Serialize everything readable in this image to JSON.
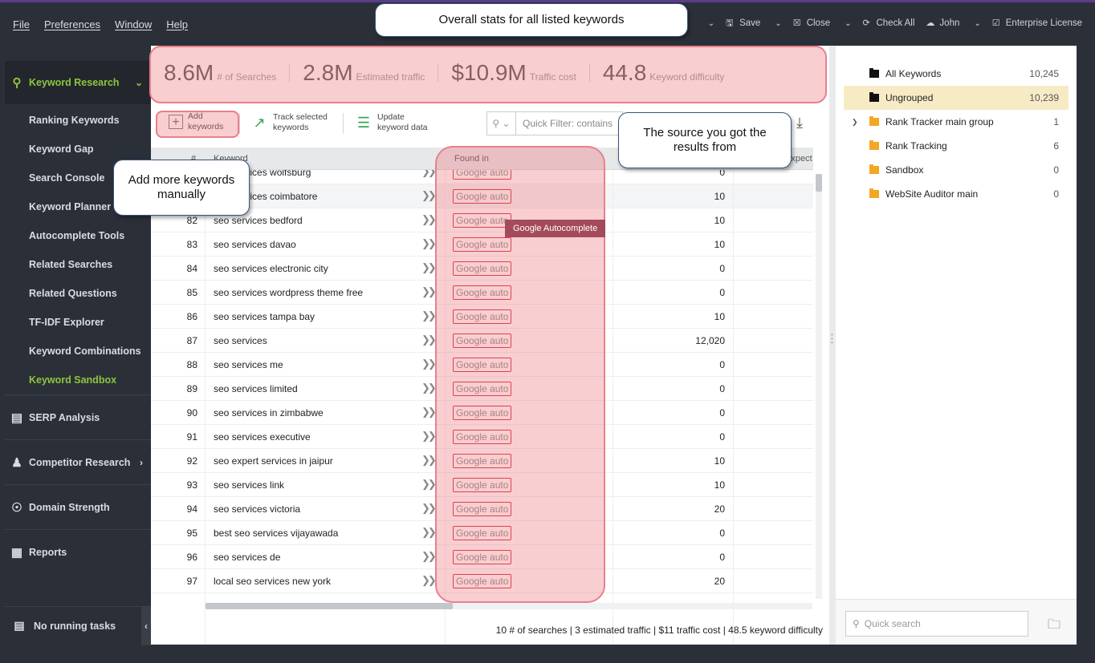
{
  "menu": [
    "File",
    "Preferences",
    "Window",
    "Help"
  ],
  "menu_right": {
    "save": "Save",
    "close": "Close",
    "check_all": "Check All",
    "user": "John",
    "license": "Enterprise License"
  },
  "sidebar": {
    "keyword_research": "Keyword Research",
    "items": [
      {
        "label": "Ranking Keywords"
      },
      {
        "label": "Keyword Gap"
      },
      {
        "label": "Search Console"
      },
      {
        "label": "Keyword Planner"
      },
      {
        "label": "Autocomplete Tools"
      },
      {
        "label": "Related Searches"
      },
      {
        "label": "Related Questions"
      },
      {
        "label": "TF-IDF Explorer"
      },
      {
        "label": "Keyword Combinations"
      },
      {
        "label": "Keyword Sandbox"
      }
    ],
    "serp": "SERP Analysis",
    "competitor": "Competitor Research",
    "domain": "Domain Strength",
    "reports": "Reports",
    "footer": "No running tasks"
  },
  "stats": [
    {
      "value": "8.6M",
      "label": "# of Searches"
    },
    {
      "value": "2.8M",
      "label": "Estimated traffic"
    },
    {
      "value": "$10.9M",
      "label": "Traffic cost"
    },
    {
      "value": "44.8",
      "label": "Keyword difficulty"
    }
  ],
  "toolbar": {
    "add_line1": "Add",
    "add_line2": "keywords",
    "track_line1": "Track selected",
    "track_line2": "keywords",
    "update_line1": "Update",
    "update_line2": "keyword data",
    "filter_placeholder": "Quick Filter: contains"
  },
  "table": {
    "col_num": "#",
    "col_keyword": "Keyword",
    "col_found": "Found in",
    "col_expect": "Expect",
    "rows": [
      {
        "num": "",
        "kw": "seo services wolfsburg",
        "found": "Google auto",
        "searches": "0"
      },
      {
        "num": "",
        "kw": "seo services coimbatore",
        "found": "Google auto",
        "searches": "10"
      },
      {
        "num": "82",
        "kw": "seo services bedford",
        "found": "Google auto",
        "searches": "10"
      },
      {
        "num": "83",
        "kw": "seo services davao",
        "found": "Google auto",
        "searches": "10"
      },
      {
        "num": "84",
        "kw": "seo services electronic city",
        "found": "Google auto",
        "searches": "0"
      },
      {
        "num": "85",
        "kw": "seo services wordpress theme free",
        "found": "Google auto",
        "searches": "0"
      },
      {
        "num": "86",
        "kw": "seo services tampa bay",
        "found": "Google auto",
        "searches": "10"
      },
      {
        "num": "87",
        "kw": "seo services",
        "found": "Google auto",
        "searches": "12,020"
      },
      {
        "num": "88",
        "kw": "seo services me",
        "found": "Google auto",
        "searches": "0"
      },
      {
        "num": "89",
        "kw": "seo services limited",
        "found": "Google auto",
        "searches": "0"
      },
      {
        "num": "90",
        "kw": "seo services in zimbabwe",
        "found": "Google auto",
        "searches": "0"
      },
      {
        "num": "91",
        "kw": "seo services executive",
        "found": "Google auto",
        "searches": "0"
      },
      {
        "num": "92",
        "kw": "seo expert services in jaipur",
        "found": "Google auto",
        "searches": "10"
      },
      {
        "num": "93",
        "kw": "seo services link",
        "found": "Google auto",
        "searches": "10"
      },
      {
        "num": "94",
        "kw": "seo services victoria",
        "found": "Google auto",
        "searches": "20"
      },
      {
        "num": "95",
        "kw": "best seo services vijayawada",
        "found": "Google auto",
        "searches": "0"
      },
      {
        "num": "96",
        "kw": "seo services de",
        "found": "Google auto",
        "searches": "0"
      },
      {
        "num": "97",
        "kw": "local seo services new york",
        "found": "Google auto",
        "searches": "20"
      }
    ]
  },
  "footer_stats": "10 # of searches | 3 estimated traffic | $11 traffic cost | 48.5 keyword difficulty",
  "tree": [
    {
      "label": "All Keywords",
      "count": "10,245",
      "color": "#111111"
    },
    {
      "label": "Ungrouped",
      "count": "10,239",
      "color": "#111111"
    },
    {
      "label": "Rank Tracker main group",
      "count": "1",
      "color": "#f5a623"
    },
    {
      "label": "Rank Tracking",
      "count": "6",
      "color": "#f5a623"
    },
    {
      "label": "Sandbox",
      "count": "0",
      "color": "#f5a623"
    },
    {
      "label": "WebSite Auditor main",
      "count": "0",
      "color": "#f5a623"
    }
  ],
  "right_search_placeholder": "Quick search",
  "callouts": {
    "stats": "Overall stats for all listed keywords",
    "source_line1": "The source you got the",
    "source_line2": "results from",
    "add_line1": "Add more keywords",
    "add_line2": "manually"
  },
  "tooltip": "Google Autocomplete",
  "colors": {
    "accent": "#8dc63f",
    "highlight": "#ea727a",
    "folder": "#f5a623"
  }
}
